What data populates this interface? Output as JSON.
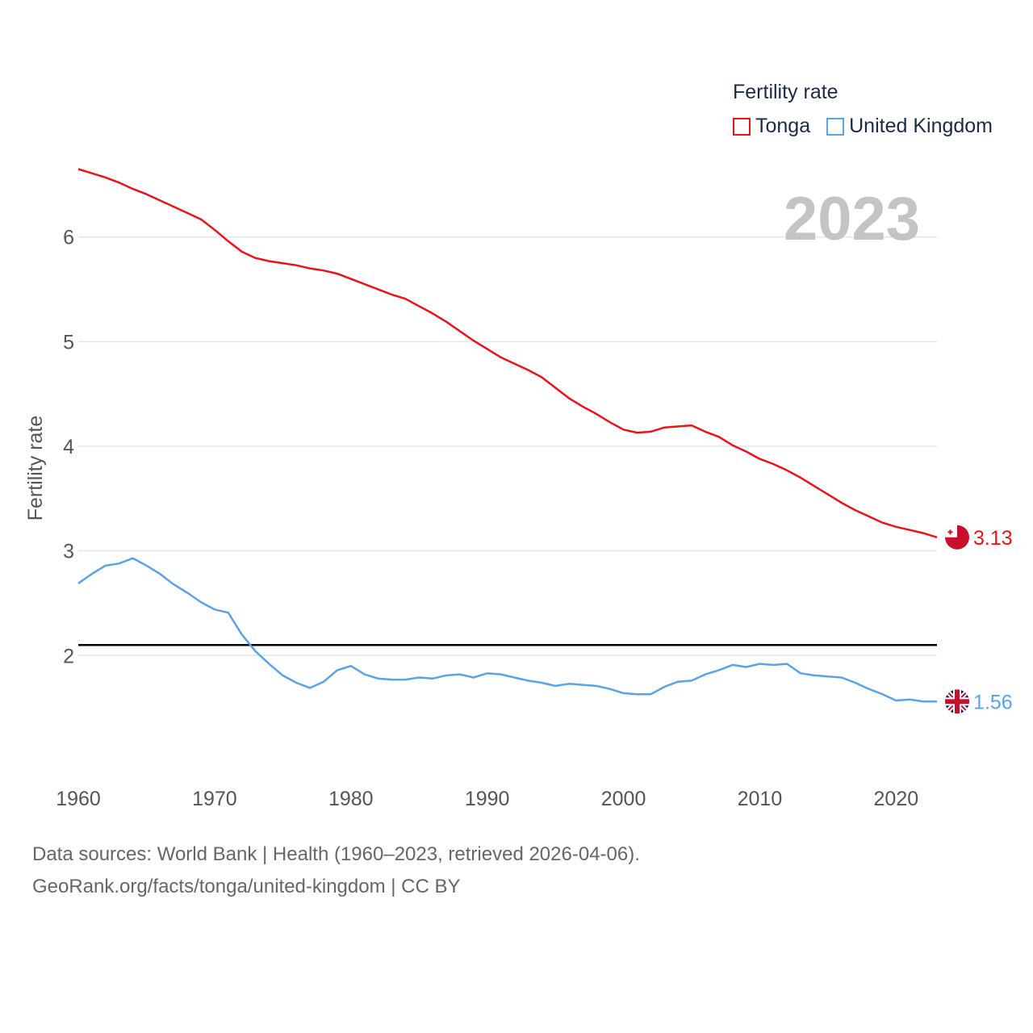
{
  "legend": {
    "title": "Fertility rate",
    "items": [
      {
        "label": "Tonga",
        "color": "#e8141a"
      },
      {
        "label": "United Kingdom",
        "color": "#5aa3e6"
      }
    ]
  },
  "current_year": "2023",
  "sources": {
    "line1": "Data sources: World Bank | Health (1960–2023, retrieved 2026-04-06).",
    "line2": "GeoRank.org/facts/tonga/united-kingdom | CC BY"
  },
  "chart_data": {
    "type": "line",
    "title": "Fertility rate",
    "xlabel": "",
    "ylabel": "Fertility rate",
    "xlim": [
      1960,
      2023
    ],
    "ylim": [
      1.3,
      6.7
    ],
    "x_ticks": [
      1960,
      1970,
      1980,
      1990,
      2000,
      2010,
      2020
    ],
    "y_ticks": [
      2,
      3,
      4,
      5,
      6
    ],
    "reference_line": {
      "y": 2.1,
      "color": "#000000"
    },
    "x": [
      1960,
      1961,
      1962,
      1963,
      1964,
      1965,
      1966,
      1967,
      1968,
      1969,
      1970,
      1971,
      1972,
      1973,
      1974,
      1975,
      1976,
      1977,
      1978,
      1979,
      1980,
      1981,
      1982,
      1983,
      1984,
      1985,
      1986,
      1987,
      1988,
      1989,
      1990,
      1991,
      1992,
      1993,
      1994,
      1995,
      1996,
      1997,
      1998,
      1999,
      2000,
      2001,
      2002,
      2003,
      2004,
      2005,
      2006,
      2007,
      2008,
      2009,
      2010,
      2011,
      2012,
      2013,
      2014,
      2015,
      2016,
      2017,
      2018,
      2019,
      2020,
      2021,
      2022,
      2023
    ],
    "series": [
      {
        "name": "Tonga",
        "color": "#e8141a",
        "end_label": "3.13",
        "values": [
          6.65,
          6.61,
          6.57,
          6.52,
          6.46,
          6.41,
          6.35,
          6.29,
          6.23,
          6.17,
          6.07,
          5.96,
          5.86,
          5.8,
          5.77,
          5.75,
          5.73,
          5.7,
          5.68,
          5.65,
          5.6,
          5.55,
          5.5,
          5.45,
          5.41,
          5.34,
          5.27,
          5.19,
          5.1,
          5.01,
          4.93,
          4.85,
          4.79,
          4.73,
          4.66,
          4.56,
          4.46,
          4.38,
          4.31,
          4.23,
          4.16,
          4.13,
          4.14,
          4.18,
          4.19,
          4.2,
          4.14,
          4.09,
          4.01,
          3.95,
          3.88,
          3.83,
          3.77,
          3.7,
          3.62,
          3.54,
          3.46,
          3.39,
          3.33,
          3.27,
          3.23,
          3.2,
          3.17,
          3.13
        ]
      },
      {
        "name": "United Kingdom",
        "color": "#5aa3e6",
        "end_label": "1.56",
        "values": [
          2.69,
          2.78,
          2.86,
          2.88,
          2.93,
          2.86,
          2.78,
          2.68,
          2.6,
          2.51,
          2.44,
          2.41,
          2.2,
          2.04,
          1.92,
          1.81,
          1.74,
          1.69,
          1.75,
          1.86,
          1.9,
          1.82,
          1.78,
          1.77,
          1.77,
          1.79,
          1.78,
          1.81,
          1.82,
          1.79,
          1.83,
          1.82,
          1.79,
          1.76,
          1.74,
          1.71,
          1.73,
          1.72,
          1.71,
          1.68,
          1.64,
          1.63,
          1.63,
          1.7,
          1.75,
          1.76,
          1.82,
          1.86,
          1.91,
          1.89,
          1.92,
          1.91,
          1.92,
          1.83,
          1.81,
          1.8,
          1.79,
          1.74,
          1.68,
          1.63,
          1.57,
          1.58,
          1.56,
          1.56
        ]
      }
    ]
  }
}
